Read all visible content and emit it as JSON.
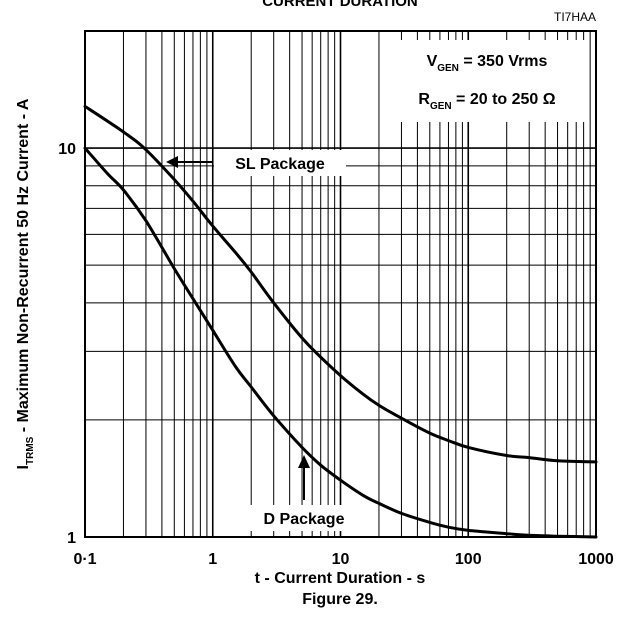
{
  "chart_data": {
    "type": "line",
    "title": "CURRENT DURATION",
    "figure_id": "TI7HAA",
    "figure_caption": "Figure 29.",
    "xlabel": "t - Current Duration - s",
    "ylabel_main": "I",
    "ylabel_sub": "TRMS",
    "ylabel_rest": " - Maximum  Non-Recurrent 50 Hz Current  - A",
    "x_scale": "log",
    "y_scale": "log",
    "xlim": [
      0.1,
      1000
    ],
    "ylim": [
      1,
      20
    ],
    "grid": true,
    "x_ticks": [
      {
        "value": 0.1,
        "label": "0·1"
      },
      {
        "value": 1,
        "label": "1"
      },
      {
        "value": 10,
        "label": "10"
      },
      {
        "value": 100,
        "label": "100"
      },
      {
        "value": 1000,
        "label": "1000"
      }
    ],
    "y_ticks": [
      {
        "value": 1,
        "label": "1"
      },
      {
        "value": 10,
        "label": "10"
      }
    ],
    "conditions": [
      {
        "sym": "V",
        "sub": "GEN",
        "rest": " = 350 Vrms"
      },
      {
        "sym": "R",
        "sub": "GEN",
        "rest": " = 20 to 250 Ω"
      }
    ],
    "series": [
      {
        "name": "SL Package",
        "x": [
          0.1,
          0.2,
          0.3,
          0.5,
          0.7,
          1,
          1.5,
          2,
          3,
          5,
          7,
          10,
          15,
          20,
          30,
          50,
          70,
          100,
          200,
          300,
          500,
          1000
        ],
        "y": [
          12.8,
          11.0,
          9.9,
          8.3,
          7.3,
          6.3,
          5.4,
          4.8,
          4.0,
          3.25,
          2.9,
          2.6,
          2.33,
          2.18,
          2.02,
          1.85,
          1.77,
          1.7,
          1.62,
          1.6,
          1.57,
          1.56
        ]
      },
      {
        "name": "D Package",
        "x": [
          0.1,
          0.15,
          0.2,
          0.3,
          0.5,
          0.7,
          1,
          1.5,
          2,
          3,
          5,
          7,
          10,
          15,
          20,
          30,
          50,
          70,
          100,
          200,
          300,
          500,
          1000
        ],
        "y": [
          10.0,
          8.6,
          7.8,
          6.5,
          4.9,
          4.1,
          3.4,
          2.75,
          2.43,
          2.05,
          1.7,
          1.53,
          1.4,
          1.28,
          1.22,
          1.15,
          1.09,
          1.06,
          1.04,
          1.02,
          1.01,
          1.005,
          1.0
        ]
      }
    ],
    "annotations": [
      {
        "text": "SL Package",
        "series": "SL Package"
      },
      {
        "text": "D Package",
        "series": "D Package"
      }
    ]
  }
}
